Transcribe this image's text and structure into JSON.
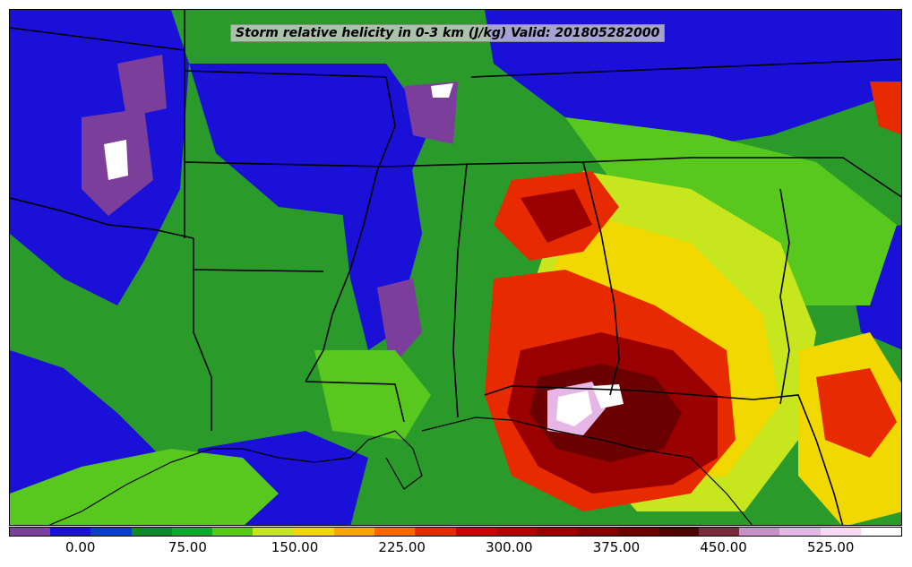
{
  "title": "Storm relative helicity in 0-3 km (J/kg) Valid: 201805282000",
  "colorbar": {
    "unit": "J/kg",
    "colors": [
      "#7b3f9b",
      "#1a10d8",
      "#0a3fc8",
      "#0f8a2a",
      "#14a82a",
      "#58c81e",
      "#c8e61e",
      "#f0d800",
      "#f7a800",
      "#f56a00",
      "#e82a00",
      "#d20000",
      "#b80000",
      "#9a0000",
      "#820000",
      "#6a0000",
      "#520000",
      "#7a2a3a",
      "#c790c8",
      "#e6b6e6",
      "#f7d8f7",
      "#ffffff"
    ],
    "ticks": [
      "0.00",
      "75.00",
      "150.00",
      "225.00",
      "300.00",
      "375.00",
      "450.00",
      "525.00"
    ],
    "tick_values": [
      0,
      75,
      150,
      225,
      300,
      375,
      450,
      525
    ],
    "range": [
      -50,
      575
    ]
  },
  "map": {
    "region": "south-central and southeastern United States",
    "background_field_color": "#2a9a2a",
    "features": [
      "state-borders",
      "coastline"
    ],
    "fill_palette": {
      "low": "#1a10d8",
      "negative": "#7b3f9b",
      "moderate": "#0f8a2a",
      "light-moderate": "#58c81e",
      "elevated": "#c8e61e",
      "high": "#f0d800",
      "very-high": "#e82a00",
      "extreme": "#9a0000",
      "peak": "#ffffff"
    }
  }
}
